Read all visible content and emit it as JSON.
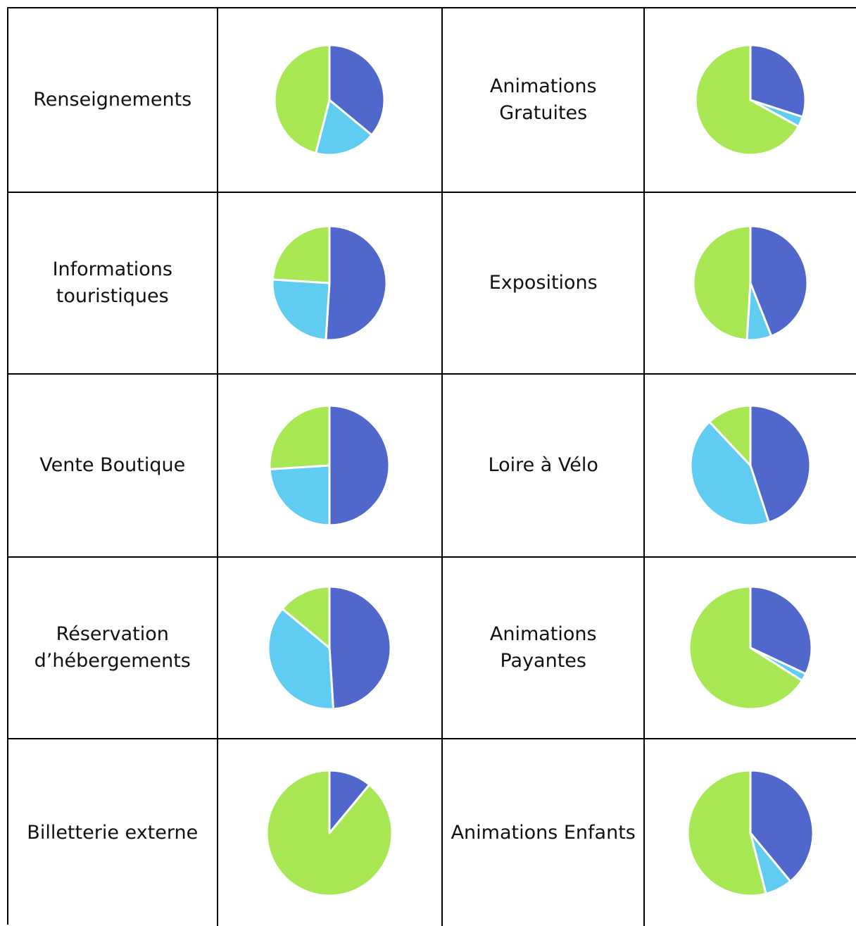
{
  "colors": {
    "blue": "#5068CC",
    "cyan": "#60CCF2",
    "green": "#A8E855"
  },
  "chart_data": [
    {
      "type": "pie",
      "category": "Renseignements",
      "values": [
        36,
        18,
        46
      ],
      "colors": [
        "#5068CC",
        "#60CCF2",
        "#A8E855"
      ]
    },
    {
      "type": "pie",
      "category": "Animations\nGratuites",
      "values": [
        30,
        3,
        67
      ],
      "colors": [
        "#5068CC",
        "#60CCF2",
        "#A8E855"
      ]
    },
    {
      "type": "pie",
      "category": "Informations\ntouristiques",
      "values": [
        51,
        25,
        24
      ],
      "colors": [
        "#5068CC",
        "#60CCF2",
        "#A8E855"
      ]
    },
    {
      "type": "pie",
      "category": "Expositions",
      "values": [
        44,
        7,
        49
      ],
      "colors": [
        "#5068CC",
        "#60CCF2",
        "#A8E855"
      ]
    },
    {
      "type": "pie",
      "category": "Vente Boutique",
      "values": [
        50,
        24,
        26
      ],
      "colors": [
        "#5068CC",
        "#60CCF2",
        "#A8E855"
      ]
    },
    {
      "type": "pie",
      "category": "Loire à Vélo",
      "values": [
        45,
        43,
        12
      ],
      "colors": [
        "#5068CC",
        "#60CCF2",
        "#A8E855"
      ]
    },
    {
      "type": "pie",
      "category": "Réservation\nd’hébergements",
      "values": [
        49,
        37,
        14
      ],
      "colors": [
        "#5068CC",
        "#60CCF2",
        "#A8E855"
      ]
    },
    {
      "type": "pie",
      "category": "Animations\nPayantes",
      "values": [
        32,
        2,
        66
      ],
      "colors": [
        "#5068CC",
        "#60CCF2",
        "#A8E855"
      ]
    },
    {
      "type": "pie",
      "category": "Billetterie externe",
      "values": [
        11,
        0,
        89
      ],
      "colors": [
        "#5068CC",
        "#60CCF2",
        "#A8E855"
      ]
    },
    {
      "type": "pie",
      "category": "Animations Enfants",
      "values": [
        39,
        7,
        54
      ],
      "colors": [
        "#5068CC",
        "#60CCF2",
        "#A8E855"
      ]
    }
  ]
}
